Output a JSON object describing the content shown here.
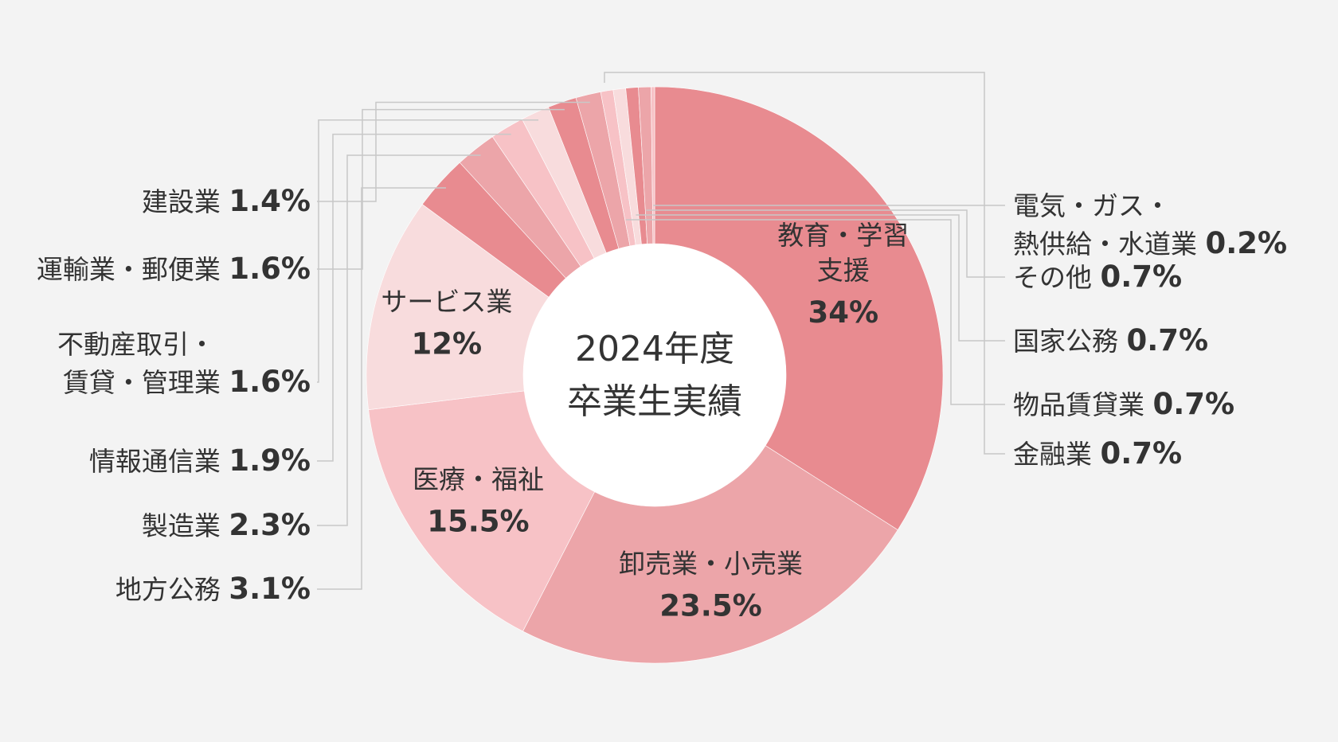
{
  "chart_data": {
    "type": "pie",
    "donut": true,
    "center_title": [
      "2024年度",
      "卒業生実績"
    ],
    "slices": [
      {
        "label": [
          "教育・学習",
          "支援"
        ],
        "value": 34,
        "display": "34%",
        "color": "#e88b90",
        "placement": "inside"
      },
      {
        "label": [
          "卸売業・小売業"
        ],
        "value": 23.5,
        "display": "23.5%",
        "color": "#eca5a9",
        "placement": "inside"
      },
      {
        "label": [
          "医療・福祉"
        ],
        "value": 15.5,
        "display": "15.5%",
        "color": "#f7c2c6",
        "placement": "inside"
      },
      {
        "label": [
          "サービス業"
        ],
        "value": 12,
        "display": "12%",
        "color": "#f8dcdd",
        "placement": "inside"
      },
      {
        "label": [
          "地方公務"
        ],
        "value": 3.1,
        "display": "3.1%",
        "color": "#e88b90",
        "placement": "left"
      },
      {
        "label": [
          "製造業"
        ],
        "value": 2.3,
        "display": "2.3%",
        "color": "#eca5a9",
        "placement": "left"
      },
      {
        "label": [
          "情報通信業"
        ],
        "value": 1.9,
        "display": "1.9%",
        "color": "#f7c2c6",
        "placement": "left"
      },
      {
        "label": [
          "不動産取引・",
          "賃貸・管理業"
        ],
        "value": 1.6,
        "display": "1.6%",
        "color": "#f8dcdd",
        "placement": "left"
      },
      {
        "label": [
          "運輸業・郵便業"
        ],
        "value": 1.6,
        "display": "1.6%",
        "color": "#e88b90",
        "placement": "left"
      },
      {
        "label": [
          "建設業"
        ],
        "value": 1.4,
        "display": "1.4%",
        "color": "#eca5a9",
        "placement": "left"
      },
      {
        "label": [
          "金融業"
        ],
        "value": 0.7,
        "display": "0.7%",
        "color": "#f7c2c6",
        "placement": "right"
      },
      {
        "label": [
          "物品賃貸業"
        ],
        "value": 0.7,
        "display": "0.7%",
        "color": "#f8dcdd",
        "placement": "right"
      },
      {
        "label": [
          "国家公務"
        ],
        "value": 0.7,
        "display": "0.7%",
        "color": "#e88b90",
        "placement": "right"
      },
      {
        "label": [
          "その他"
        ],
        "value": 0.7,
        "display": "0.7%",
        "color": "#eca5a9",
        "placement": "right"
      },
      {
        "label": [
          "電気・ガス・",
          "熱供給・水道業"
        ],
        "value": 0.2,
        "display": "0.2%",
        "color": "#f7c2c6",
        "placement": "right"
      }
    ]
  }
}
